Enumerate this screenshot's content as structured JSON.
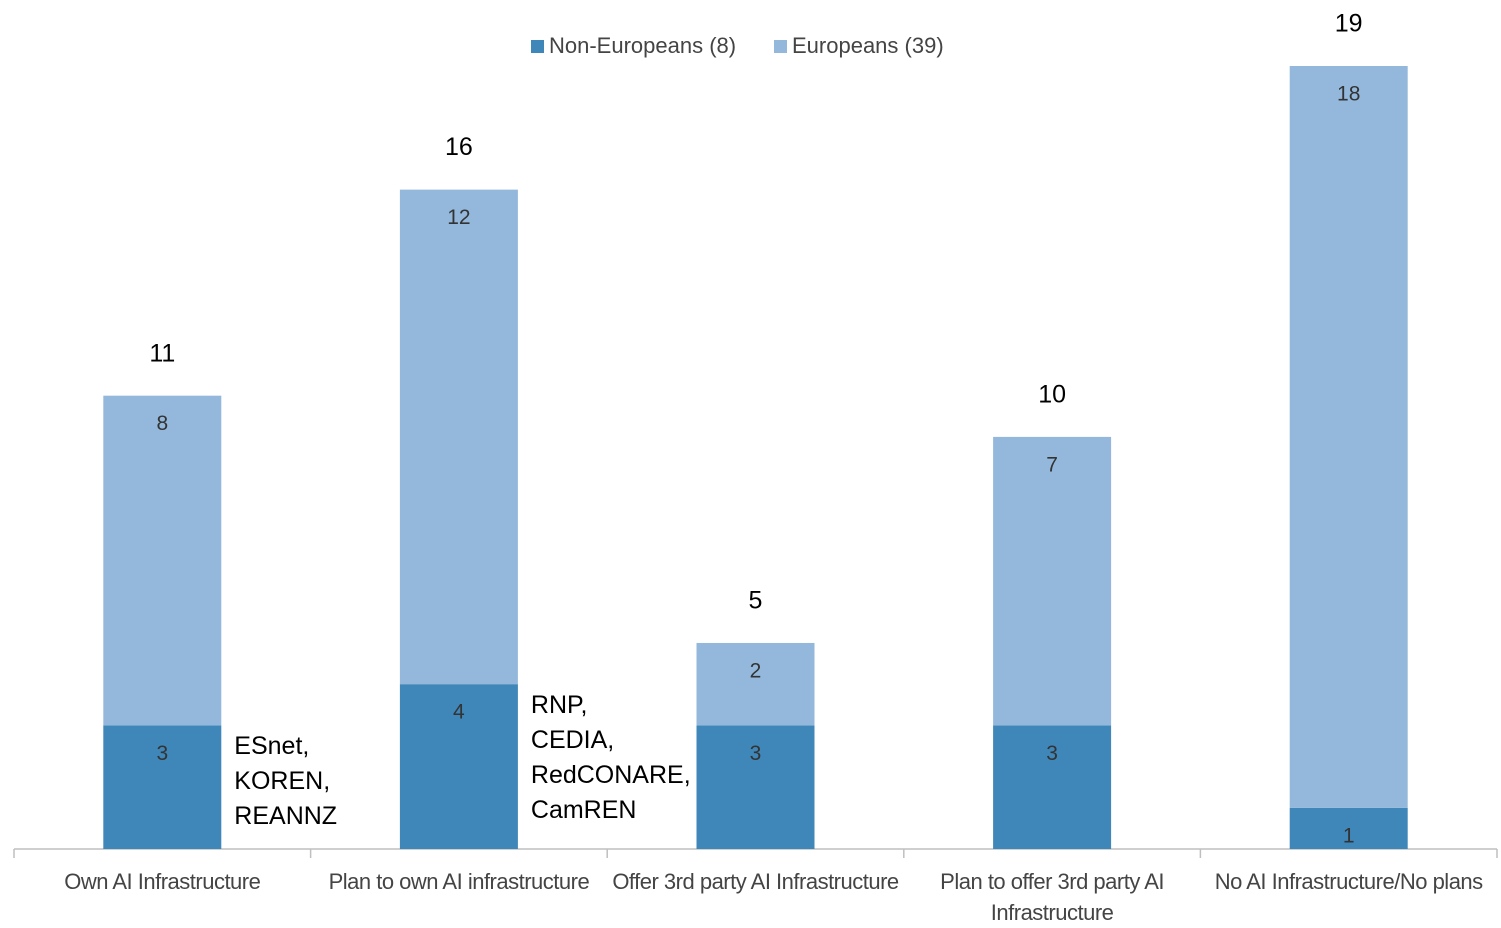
{
  "chart_data": {
    "type": "stacked_bar",
    "categories": [
      "Own AI Infrastructure",
      "Plan to own AI infrastructure",
      "Offer 3rd party AI Infrastructure",
      "Plan to offer 3rd party AI Infrastructure",
      "No AI Infrastructure/No plans"
    ],
    "series": [
      {
        "name": "Non-Europeans (8)",
        "color": "#3f87b8",
        "values": [
          3,
          4,
          3,
          3,
          1
        ]
      },
      {
        "name": "Europeans (39)",
        "color": "#93b8dc",
        "values": [
          8,
          12,
          2,
          7,
          18
        ]
      }
    ],
    "totals": [
      11,
      16,
      5,
      10,
      19
    ],
    "annotations": [
      [
        "ESnet,",
        "KOREN,",
        "REANNZ"
      ],
      [
        "RNP,",
        "CEDIA,",
        "RedCONARE,",
        "CamREN"
      ],
      null,
      null,
      null
    ],
    "legend": "top"
  }
}
